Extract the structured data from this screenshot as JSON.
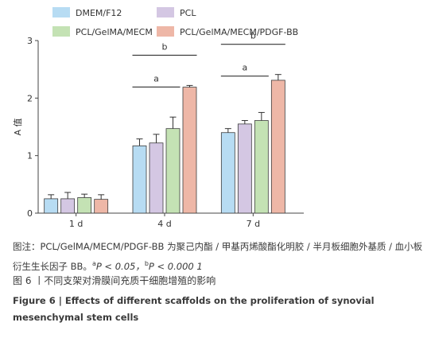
{
  "chart_data": {
    "type": "bar",
    "ylabel": "A 值",
    "ylim": [
      0,
      3
    ],
    "yticks": [
      "0",
      "1",
      "2",
      "3"
    ],
    "categories": [
      "1 d",
      "4 d",
      "7 d"
    ],
    "series": [
      {
        "name": "DMEM/F12",
        "color": "#b7dcf3",
        "values": [
          0.25,
          1.17,
          1.4
        ],
        "errors": [
          0.07,
          0.12,
          0.07
        ]
      },
      {
        "name": "PCL",
        "color": "#d4c7e3",
        "values": [
          0.25,
          1.22,
          1.55
        ],
        "errors": [
          0.11,
          0.15,
          0.06
        ]
      },
      {
        "name": "PCL/GelMA/MECM",
        "color": "#c4e2b4",
        "values": [
          0.27,
          1.47,
          1.61
        ],
        "errors": [
          0.06,
          0.2,
          0.14
        ]
      },
      {
        "name": "PCL/GelMA/MECM/PDGF-BB",
        "color": "#eeb7a7",
        "values": [
          0.24,
          2.19,
          2.31
        ],
        "errors": [
          0.08,
          0.03,
          0.1
        ]
      }
    ],
    "annotations": [
      {
        "label": "a",
        "category": "4 d"
      },
      {
        "label": "b",
        "category": "4 d"
      },
      {
        "label": "a",
        "category": "7 d"
      },
      {
        "label": "b",
        "category": "7 d"
      }
    ],
    "legend": "top"
  },
  "caption": {
    "note_prefix": "图注：PCL/GelMA/MECM/PDGF-BB 为聚己内酯 / 甲基丙烯酸酯化明胶 / 半月板细胞外基质 / 血小板衍生生长因子 BB。",
    "sig_a_mark": "a",
    "sig_a_text": "P < 0.05，",
    "sig_b_mark": "b",
    "sig_b_text": "P < 0.000 1",
    "title_cn": "图 6 丨不同支架对滑膜间充质干细胞增殖的影响",
    "title_en": "Figure 6 | Effects of different scaffolds on the proliferation of synovial mesenchymal stem cells"
  }
}
